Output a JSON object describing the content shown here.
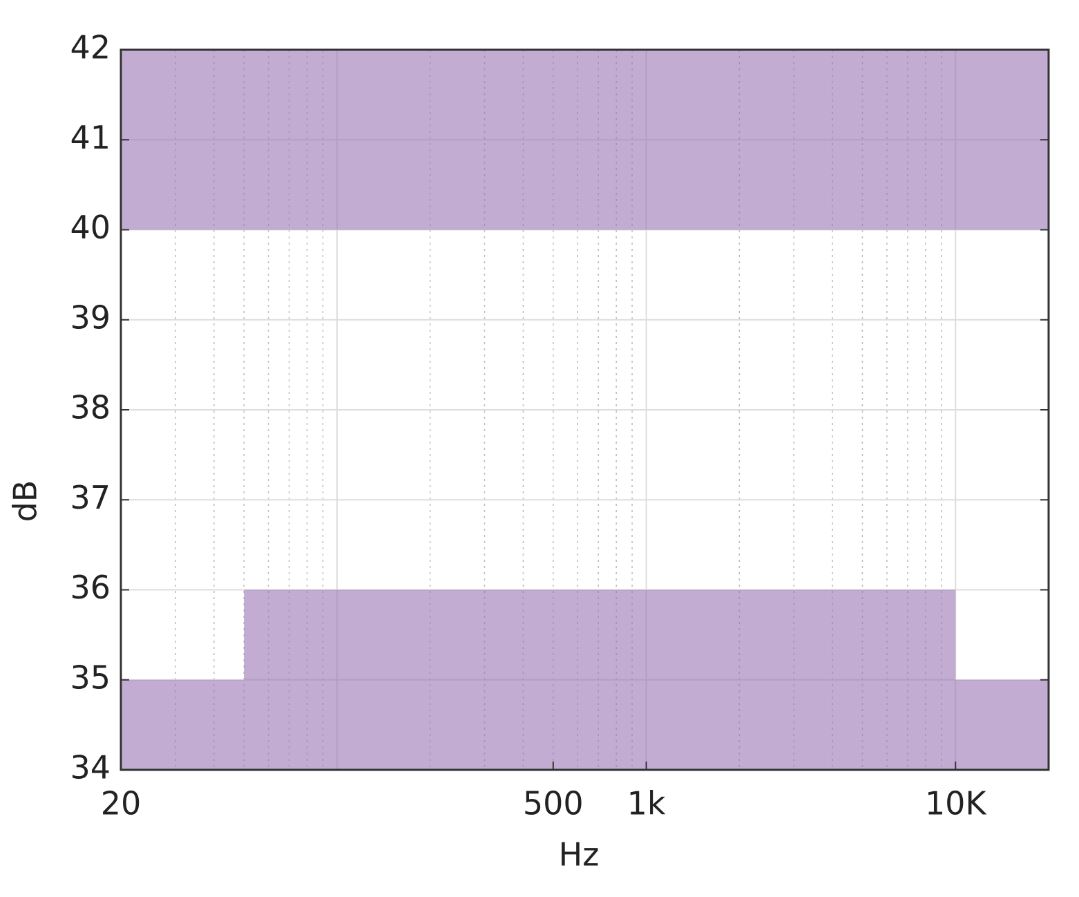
{
  "chart_data": {
    "type": "area",
    "xlabel": "Hz",
    "ylabel": "dB",
    "xscale": "log",
    "xlim": [
      20,
      20000
    ],
    "ylim": [
      34,
      42
    ],
    "xticks": [
      20,
      500,
      {
        "value": 1000,
        "label": "1k"
      },
      {
        "value": 10000,
        "label": "10K"
      }
    ],
    "yticks": [
      34,
      35,
      36,
      37,
      38,
      39,
      40,
      41,
      42
    ],
    "x_major_grid": [
      100,
      1000,
      10000
    ],
    "x_minor_grid": [
      30,
      40,
      50,
      60,
      70,
      80,
      90,
      200,
      300,
      400,
      500,
      600,
      700,
      800,
      900,
      2000,
      3000,
      4000,
      5000,
      6000,
      7000,
      8000,
      9000
    ],
    "grid": true,
    "series": [
      {
        "color": "#9a74b4",
        "x": [
          20,
          20000
        ],
        "lower": [
          40,
          40
        ],
        "values": [
          42,
          42
        ]
      },
      {
        "color": "#9a74b4",
        "x": [
          20,
          50,
          50,
          10000,
          10000,
          20000
        ],
        "lower": [
          34,
          34,
          34,
          34,
          34,
          34
        ],
        "values": [
          35,
          35,
          36,
          36,
          35,
          35
        ]
      }
    ]
  }
}
